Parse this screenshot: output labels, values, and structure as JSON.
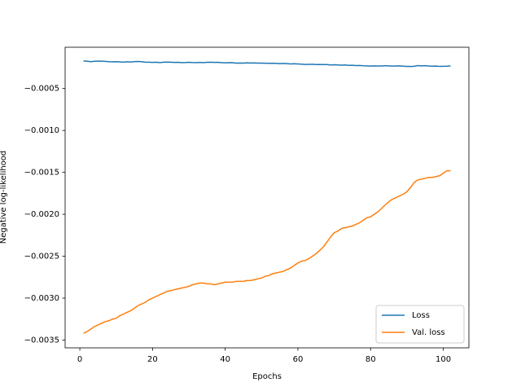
{
  "chart_data": {
    "type": "line",
    "xlabel": "Epochs",
    "ylabel": "Negative log-likelihood",
    "x": [
      1,
      2,
      3,
      4,
      5,
      6,
      7,
      8,
      9,
      10,
      11,
      12,
      13,
      14,
      15,
      16,
      17,
      18,
      19,
      20,
      21,
      22,
      23,
      24,
      25,
      26,
      27,
      28,
      29,
      30,
      31,
      32,
      33,
      34,
      35,
      36,
      37,
      38,
      39,
      40,
      41,
      42,
      43,
      44,
      45,
      46,
      47,
      48,
      49,
      50,
      51,
      52,
      53,
      54,
      55,
      56,
      57,
      58,
      59,
      60,
      61,
      62,
      63,
      64,
      65,
      66,
      67,
      68,
      69,
      70,
      71,
      72,
      73,
      74,
      75,
      76,
      77,
      78,
      79,
      80,
      81,
      82,
      83,
      84,
      85,
      86,
      87,
      88,
      89,
      90,
      91,
      92,
      93,
      94,
      95,
      96,
      97,
      98,
      99,
      100,
      101,
      102
    ],
    "series": [
      {
        "name": "Loss",
        "color": "#1f77b4",
        "values": [
          -0.000171,
          -0.000173,
          -0.000179,
          -0.000175,
          -0.000172,
          -0.000173,
          -0.000176,
          -0.00018,
          -0.000181,
          -0.000179,
          -0.000182,
          -0.000184,
          -0.000181,
          -0.000183,
          -0.000178,
          -0.000177,
          -0.00018,
          -0.000185,
          -0.000186,
          -0.000188,
          -0.000186,
          -0.00019,
          -0.000185,
          -0.000184,
          -0.000186,
          -0.000188,
          -0.000187,
          -0.00019,
          -0.000189,
          -0.000187,
          -0.000189,
          -0.00019,
          -0.000188,
          -0.000191,
          -0.000187,
          -0.000185,
          -0.000188,
          -0.000187,
          -0.00019,
          -0.000193,
          -0.00019,
          -0.000192,
          -0.000197,
          -0.000195,
          -0.000196,
          -0.000193,
          -0.000195,
          -0.000194,
          -0.000196,
          -0.000197,
          -0.000198,
          -0.000199,
          -0.000198,
          -0.000199,
          -0.000202,
          -0.0002,
          -0.000203,
          -0.000206,
          -0.000204,
          -0.000206,
          -0.000209,
          -0.000212,
          -0.000211,
          -0.00021,
          -0.000213,
          -0.000212,
          -0.000214,
          -0.000213,
          -0.000218,
          -0.000216,
          -0.000219,
          -0.000221,
          -0.000218,
          -0.000223,
          -0.000222,
          -0.000226,
          -0.000224,
          -0.000228,
          -0.000229,
          -0.000232,
          -0.000229,
          -0.000231,
          -0.00023,
          -0.000227,
          -0.000229,
          -0.000232,
          -0.00023,
          -0.000229,
          -0.000233,
          -0.000235,
          -0.000237,
          -0.000234,
          -0.000226,
          -0.000229,
          -0.000227,
          -0.000231,
          -0.000233,
          -0.000232,
          -0.000236,
          -0.000234,
          -0.000233,
          -0.000231
        ]
      },
      {
        "name": "Val. loss",
        "color": "#ff7f0e",
        "values": [
          -0.00342,
          -0.0034,
          -0.00337,
          -0.00334,
          -0.00332,
          -0.0033,
          -0.00328,
          -0.00327,
          -0.00325,
          -0.00324,
          -0.00321,
          -0.00319,
          -0.00317,
          -0.00315,
          -0.00312,
          -0.00309,
          -0.00307,
          -0.00305,
          -0.00302,
          -0.003,
          -0.00298,
          -0.00296,
          -0.00294,
          -0.00292,
          -0.00291,
          -0.0029,
          -0.00289,
          -0.00288,
          -0.00287,
          -0.00286,
          -0.00284,
          -0.00283,
          -0.00282,
          -0.00282,
          -0.00283,
          -0.00283,
          -0.00284,
          -0.00283,
          -0.00282,
          -0.00281,
          -0.00281,
          -0.00281,
          -0.0028,
          -0.0028,
          -0.0028,
          -0.00279,
          -0.00279,
          -0.00278,
          -0.00277,
          -0.00276,
          -0.00274,
          -0.00273,
          -0.00271,
          -0.0027,
          -0.00269,
          -0.00268,
          -0.00266,
          -0.00264,
          -0.00261,
          -0.00258,
          -0.00256,
          -0.00255,
          -0.00253,
          -0.0025,
          -0.00247,
          -0.00243,
          -0.00239,
          -0.00233,
          -0.00227,
          -0.00222,
          -0.0022,
          -0.00217,
          -0.00216,
          -0.00215,
          -0.00214,
          -0.00212,
          -0.0021,
          -0.00207,
          -0.00204,
          -0.00203,
          -0.002,
          -0.00197,
          -0.00193,
          -0.00189,
          -0.00185,
          -0.00182,
          -0.0018,
          -0.00178,
          -0.00176,
          -0.00173,
          -0.00168,
          -0.00162,
          -0.00159,
          -0.00158,
          -0.00157,
          -0.00156,
          -0.00156,
          -0.00155,
          -0.00154,
          -0.00151,
          -0.00148,
          -0.00148
        ]
      }
    ],
    "xlim": [
      -4.05,
      107.05
    ],
    "xticks": [
      0,
      20,
      40,
      60,
      80,
      100
    ],
    "ylim": [
      -0.003593,
      -7e-06
    ],
    "yticks": [
      {
        "value": -0.0005,
        "label": "−0.0005"
      },
      {
        "value": -0.001,
        "label": "−0.0010"
      },
      {
        "value": -0.0015,
        "label": "−0.0015"
      },
      {
        "value": -0.002,
        "label": "−0.0020"
      },
      {
        "value": -0.0025,
        "label": "−0.0025"
      },
      {
        "value": -0.003,
        "label": "−0.0030"
      },
      {
        "value": -0.0035,
        "label": "−0.0035"
      }
    ],
    "legend": "lower right",
    "grid": false
  }
}
